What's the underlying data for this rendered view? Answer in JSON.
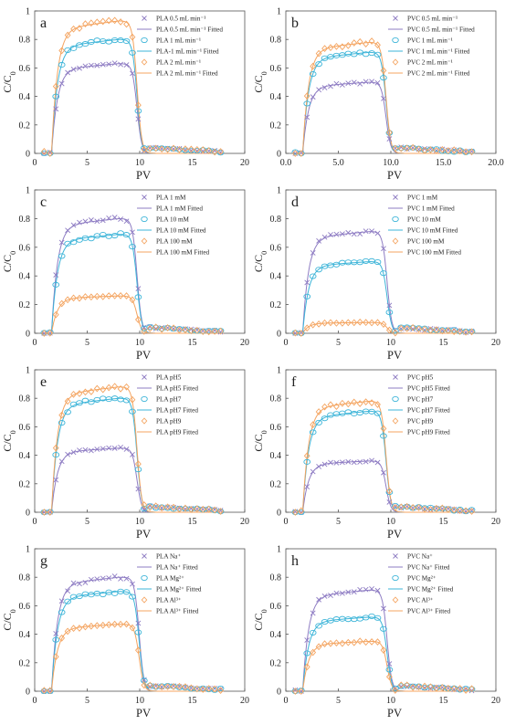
{
  "figure": {
    "ylabel_main": "C/C",
    "ylabel_sub": "0"
  },
  "chart_data": [
    {
      "panel": "a",
      "type": "scatter",
      "xlabel": "PV",
      "ylabel": "C/C0",
      "xlim": [
        0,
        20
      ],
      "ylim": [
        0,
        1
      ],
      "xticks": [
        "0",
        "5",
        "10",
        "15",
        "20"
      ],
      "yticks": [
        "0",
        "0.2",
        "0.4",
        "0.6",
        "0.8",
        "1"
      ],
      "legend": {
        "position": "top-right",
        "entries": [
          "PLA 0.5 mL min⁻¹",
          "PLA 0.5 mL min⁻¹ Fitted",
          "PLA 1 mL min⁻¹",
          "PLA-1 mL min⁻¹ Fitted",
          "PLA 2 mL min⁻¹",
          "PLA 2 mL min⁻¹ Fitted"
        ]
      },
      "series": [
        {
          "name": "PLA 0.5 mL min⁻¹",
          "marker": "x",
          "color": "#8e7cc3",
          "plateau": 0.63,
          "pv_end": 9.4,
          "observed": true
        },
        {
          "name": "PLA 0.5 mL min⁻¹ Fitted",
          "marker": "line",
          "color": "#8e7cc3",
          "plateau": 0.63,
          "pv_end": 9.4,
          "observed": false
        },
        {
          "name": "PLA 1 mL min⁻¹",
          "marker": "circle",
          "color": "#3cb4d8",
          "plateau": 0.8,
          "pv_end": 9.4,
          "observed": true
        },
        {
          "name": "PLA-1 mL min⁻¹ Fitted",
          "marker": "line",
          "color": "#3cb4d8",
          "plateau": 0.8,
          "pv_end": 9.4,
          "observed": false
        },
        {
          "name": "PLA 2 mL min⁻¹",
          "marker": "diamond",
          "color": "#f4a460",
          "plateau": 0.93,
          "pv_end": 9.4,
          "observed": true
        },
        {
          "name": "PLA 2 mL min⁻¹ Fitted",
          "marker": "line",
          "color": "#f4a460",
          "plateau": 0.93,
          "pv_end": 9.4,
          "observed": false
        }
      ]
    },
    {
      "panel": "b",
      "type": "scatter",
      "xlabel": "PV",
      "ylabel": "C/C0",
      "xlim": [
        0,
        20
      ],
      "ylim": [
        0,
        1
      ],
      "xticks": [
        "0.0",
        "5.0",
        "10.0",
        "15.0",
        "20.0"
      ],
      "yticks": [
        "0",
        "0.2",
        "0.4",
        "0.6",
        "0.8",
        "1"
      ],
      "legend": {
        "position": "top-right",
        "entries": [
          "PVC 0.5 mL min⁻¹",
          "PVC 0.5 mL min⁻¹ Fitted",
          "PVC 1 mL min⁻¹",
          "PVC 1 mL min⁻¹ Fitted",
          "PVC 2 mL min⁻¹",
          "PVC 2 mL min⁻¹ Fitted"
        ]
      },
      "series": [
        {
          "name": "PVC 0.5 mL min⁻¹",
          "marker": "x",
          "color": "#8e7cc3",
          "plateau": 0.5,
          "pv_end": 9.2,
          "observed": true
        },
        {
          "name": "PVC 0.5 mL min⁻¹ Fitted",
          "marker": "line",
          "color": "#8e7cc3",
          "plateau": 0.5,
          "pv_end": 9.2,
          "observed": false
        },
        {
          "name": "PVC 1 mL min⁻¹",
          "marker": "circle",
          "color": "#3cb4d8",
          "plateau": 0.71,
          "pv_end": 9.2,
          "observed": true
        },
        {
          "name": "PVC 1 mL min⁻¹ Fitted",
          "marker": "line",
          "color": "#3cb4d8",
          "plateau": 0.71,
          "pv_end": 9.2,
          "observed": false
        },
        {
          "name": "PVC 2 mL min⁻¹",
          "marker": "diamond",
          "color": "#f4a460",
          "plateau": 0.78,
          "pv_end": 9.2,
          "observed": true
        },
        {
          "name": "PVC 2 mL min⁻¹ Fitted",
          "marker": "line",
          "color": "#f4a460",
          "plateau": 0.78,
          "pv_end": 9.2,
          "observed": false
        }
      ]
    },
    {
      "panel": "c",
      "type": "scatter",
      "xlabel": "PV",
      "ylabel": "C/C0",
      "xlim": [
        0,
        20
      ],
      "ylim": [
        0,
        1
      ],
      "xticks": [
        "0",
        "5",
        "10",
        "15",
        "20"
      ],
      "yticks": [
        "0",
        "0.2",
        "0.4",
        "0.6",
        "0.8",
        "1"
      ],
      "legend": {
        "position": "top-right",
        "entries": [
          "PLA 1 mM",
          "PLA 1 mM Fitted",
          "PLA 10 mM",
          "PLA 10 mM Fitted",
          "PLA 100 mM",
          "PLA 100 mM Fitted"
        ]
      },
      "series": [
        {
          "name": "PLA 1 mM",
          "marker": "x",
          "color": "#8e7cc3",
          "plateau": 0.8,
          "pv_end": 9.4,
          "observed": true
        },
        {
          "name": "PLA 1 mM Fitted",
          "marker": "line",
          "color": "#8e7cc3",
          "plateau": 0.8,
          "pv_end": 9.4,
          "observed": false
        },
        {
          "name": "PLA 10 mM",
          "marker": "circle",
          "color": "#3cb4d8",
          "plateau": 0.69,
          "pv_end": 9.4,
          "observed": true
        },
        {
          "name": "PLA 10 mM Fitted",
          "marker": "line",
          "color": "#3cb4d8",
          "plateau": 0.69,
          "pv_end": 9.4,
          "observed": false
        },
        {
          "name": "PLA 100 mM",
          "marker": "diamond",
          "color": "#f4a460",
          "plateau": 0.26,
          "pv_end": 9.4,
          "observed": true
        },
        {
          "name": "PLA 100 mM Fitted",
          "marker": "line",
          "color": "#f4a460",
          "plateau": 0.26,
          "pv_end": 9.4,
          "observed": false
        }
      ]
    },
    {
      "panel": "d",
      "type": "scatter",
      "xlabel": "PV",
      "ylabel": "C/C0",
      "xlim": [
        0,
        20
      ],
      "ylim": [
        0,
        1
      ],
      "xticks": [
        "0",
        "5",
        "10",
        "15",
        "20"
      ],
      "yticks": [
        "0",
        "0.2",
        "0.4",
        "0.6",
        "0.8",
        "1"
      ],
      "legend": {
        "position": "top-right",
        "entries": [
          "PVC 1 mM",
          "PVC 1 mM Fitted",
          "PVC 10 mM",
          "PVC 10 mM Fitted",
          "PVC 100 mM",
          "PVC 100 mM Fitted"
        ]
      },
      "series": [
        {
          "name": "PVC 1 mM",
          "marker": "x",
          "color": "#8e7cc3",
          "plateau": 0.71,
          "pv_end": 9.3,
          "observed": true
        },
        {
          "name": "PVC 1 mM Fitted",
          "marker": "line",
          "color": "#8e7cc3",
          "plateau": 0.71,
          "pv_end": 9.3,
          "observed": false
        },
        {
          "name": "PVC 10 mM",
          "marker": "circle",
          "color": "#3cb4d8",
          "plateau": 0.5,
          "pv_end": 9.3,
          "observed": true
        },
        {
          "name": "PVC 10 mM Fitted",
          "marker": "line",
          "color": "#3cb4d8",
          "plateau": 0.5,
          "pv_end": 9.3,
          "observed": false
        },
        {
          "name": "PVC 100 mM",
          "marker": "diamond",
          "color": "#f4a460",
          "plateau": 0.075,
          "pv_end": 9.3,
          "observed": true
        },
        {
          "name": "PVC 100 mM Fitted",
          "marker": "line",
          "color": "#f4a460",
          "plateau": 0.075,
          "pv_end": 9.3,
          "observed": false
        }
      ]
    },
    {
      "panel": "e",
      "type": "scatter",
      "xlabel": "PV",
      "ylabel": "C/C0",
      "xlim": [
        0,
        20
      ],
      "ylim": [
        0,
        1
      ],
      "xticks": [
        "0",
        "5",
        "10",
        "15",
        "20"
      ],
      "yticks": [
        "0",
        "0.2",
        "0.4",
        "0.6",
        "0.8",
        "1"
      ],
      "legend": {
        "position": "top-right",
        "entries": [
          "PLA pH5",
          "PLA pH5 Fitted",
          "PLA pH7",
          "PLA pH7 Fitted",
          "PLA pH9",
          "PLA pH9 Fitted"
        ]
      },
      "series": [
        {
          "name": "PLA pH5",
          "marker": "x",
          "color": "#8e7cc3",
          "plateau": 0.45,
          "pv_end": 9.4,
          "observed": true
        },
        {
          "name": "PLA pH5 Fitted",
          "marker": "line",
          "color": "#8e7cc3",
          "plateau": 0.45,
          "pv_end": 9.4,
          "observed": false
        },
        {
          "name": "PLA pH7",
          "marker": "circle",
          "color": "#3cb4d8",
          "plateau": 0.8,
          "pv_end": 9.4,
          "observed": true
        },
        {
          "name": "PLA pH7 Fitted",
          "marker": "line",
          "color": "#3cb4d8",
          "plateau": 0.8,
          "pv_end": 9.4,
          "observed": false
        },
        {
          "name": "PLA pH9",
          "marker": "diamond",
          "color": "#f4a460",
          "plateau": 0.88,
          "pv_end": 9.4,
          "observed": true
        },
        {
          "name": "PLA pH9 Fitted",
          "marker": "line",
          "color": "#f4a460",
          "plateau": 0.88,
          "pv_end": 9.4,
          "observed": false
        }
      ]
    },
    {
      "panel": "f",
      "type": "scatter",
      "xlabel": "PV",
      "ylabel": "C/C0",
      "xlim": [
        0,
        20
      ],
      "ylim": [
        0,
        1
      ],
      "xticks": [
        "0",
        "5",
        "10",
        "15",
        "20"
      ],
      "yticks": [
        "0",
        "0.2",
        "0.4",
        "0.6",
        "0.8",
        "1"
      ],
      "legend": {
        "position": "top-right",
        "entries": [
          "PVC pH5",
          "PVC pH5 Fitted",
          "PVC pH7",
          "PVC pH7 Fitted",
          "PVC pH9",
          "PVC pH9 Fitted"
        ]
      },
      "series": [
        {
          "name": "PVC pH5",
          "marker": "x",
          "color": "#8e7cc3",
          "plateau": 0.36,
          "pv_end": 9.2,
          "observed": true
        },
        {
          "name": "PVC pH5 Fitted",
          "marker": "line",
          "color": "#8e7cc3",
          "plateau": 0.36,
          "pv_end": 9.2,
          "observed": false
        },
        {
          "name": "PVC pH7",
          "marker": "circle",
          "color": "#3cb4d8",
          "plateau": 0.71,
          "pv_end": 9.2,
          "observed": true
        },
        {
          "name": "PVC pH7 Fitted",
          "marker": "line",
          "color": "#3cb4d8",
          "plateau": 0.71,
          "pv_end": 9.2,
          "observed": false
        },
        {
          "name": "PVC pH9",
          "marker": "diamond",
          "color": "#f4a460",
          "plateau": 0.78,
          "pv_end": 9.2,
          "observed": true
        },
        {
          "name": "PVC pH9 Fitted",
          "marker": "line",
          "color": "#f4a460",
          "plateau": 0.78,
          "pv_end": 9.2,
          "observed": false
        }
      ]
    },
    {
      "panel": "g",
      "type": "scatter",
      "xlabel": "PV",
      "ylabel": "C/C0",
      "xlim": [
        0,
        20
      ],
      "ylim": [
        0,
        1
      ],
      "xticks": [
        "0",
        "5",
        "10",
        "15",
        "20"
      ],
      "yticks": [
        "0",
        "0.2",
        "0.4",
        "0.6",
        "0.8",
        "1"
      ],
      "legend": {
        "position": "top-right",
        "entries": [
          "PLA Na⁺",
          "PLA Na⁺ Fitted",
          "PLA Mg²⁺",
          "PLA Mg²⁺ Fitted",
          "PLA Al³⁺",
          "PLA Al³⁺ Fitted"
        ]
      },
      "series": [
        {
          "name": "PLA Na⁺",
          "marker": "x",
          "color": "#8e7cc3",
          "plateau": 0.8,
          "pv_end": 9.6,
          "observed": true
        },
        {
          "name": "PLA Na⁺ Fitted",
          "marker": "line",
          "color": "#8e7cc3",
          "plateau": 0.8,
          "pv_end": 9.6,
          "observed": false
        },
        {
          "name": "PLA Mg²⁺",
          "marker": "circle",
          "color": "#3cb4d8",
          "plateau": 0.7,
          "pv_end": 9.6,
          "observed": true
        },
        {
          "name": "PLA Mg²⁺ Fitted",
          "marker": "line",
          "color": "#3cb4d8",
          "plateau": 0.7,
          "pv_end": 9.6,
          "observed": false
        },
        {
          "name": "PLA Al³⁺",
          "marker": "diamond",
          "color": "#f4a460",
          "plateau": 0.47,
          "pv_end": 9.6,
          "observed": true
        },
        {
          "name": "PLA Al³⁺ Fitted",
          "marker": "line",
          "color": "#f4a460",
          "plateau": 0.47,
          "pv_end": 9.6,
          "observed": false
        }
      ]
    },
    {
      "panel": "h",
      "type": "scatter",
      "xlabel": "PV",
      "ylabel": "C/C0",
      "xlim": [
        0,
        20
      ],
      "ylim": [
        0,
        1
      ],
      "xticks": [
        "0",
        "5",
        "10",
        "15",
        "20"
      ],
      "yticks": [
        "0",
        "0.2",
        "0.4",
        "0.6",
        "0.8",
        "1"
      ],
      "legend": {
        "position": "top-right",
        "entries": [
          "PVC Na⁺",
          "PVC Na⁺ Fitted",
          "PVC Mg²⁺",
          "PVC Mg²⁺ Fitted",
          "PVC Al³⁺",
          "PVC Al³⁺ Fitted"
        ]
      },
      "series": [
        {
          "name": "PVC Na⁺",
          "marker": "x",
          "color": "#8e7cc3",
          "plateau": 0.71,
          "pv_end": 9.3,
          "observed": true
        },
        {
          "name": "PVC Na⁺ Fitted",
          "marker": "line",
          "color": "#8e7cc3",
          "plateau": 0.71,
          "pv_end": 9.3,
          "observed": false
        },
        {
          "name": "PVC Mg²⁺",
          "marker": "circle",
          "color": "#3cb4d8",
          "plateau": 0.52,
          "pv_end": 9.3,
          "observed": true
        },
        {
          "name": "PVC Mg²⁺ Fitted",
          "marker": "line",
          "color": "#3cb4d8",
          "plateau": 0.52,
          "pv_end": 9.3,
          "observed": false
        },
        {
          "name": "PVC Al³⁺",
          "marker": "diamond",
          "color": "#f4a460",
          "plateau": 0.35,
          "pv_end": 9.3,
          "observed": true
        },
        {
          "name": "PVC Al³⁺ Fitted",
          "marker": "line",
          "color": "#f4a460",
          "plateau": 0.35,
          "pv_end": 9.3,
          "observed": false
        }
      ]
    }
  ]
}
